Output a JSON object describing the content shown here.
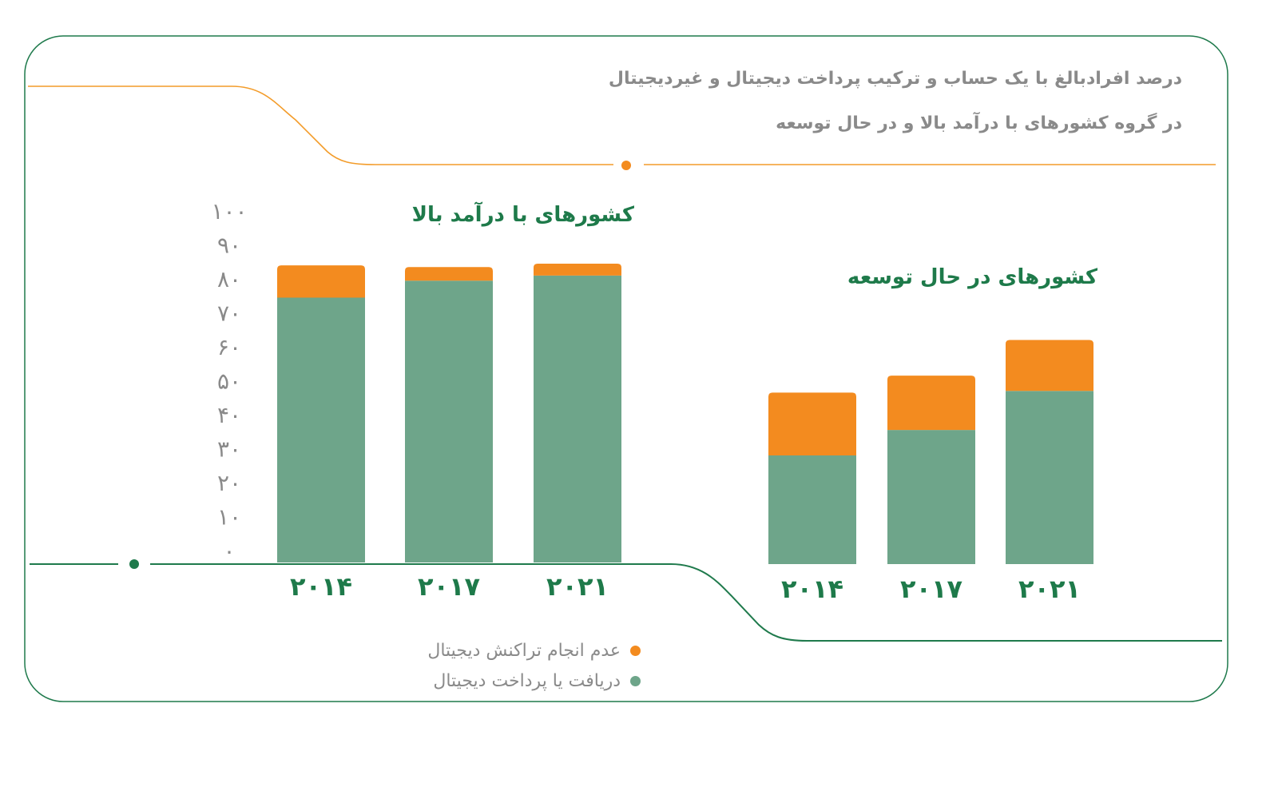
{
  "header": {
    "title_line1": "درصد افرادبالغ با یک حساب و ترکیب پرداخت دیجیتال و غیردیجیتال",
    "title_line2": "در گروه کشورهای با درآمد بالا و در حال توسعه"
  },
  "colors": {
    "digital": "#6ea58a",
    "non_digital": "#f38b1f",
    "title_green": "#1e7a4a",
    "frame_green": "#1f7a4c",
    "accent_orange": "#f39c2a",
    "text_gray": "#8a8a8a"
  },
  "legend": [
    {
      "label": "عدم انجام تراکنش دیجیتال",
      "color": "#f38b1f"
    },
    {
      "label": "دریافت یا پرداخت دیجیتال",
      "color": "#6ea58a"
    }
  ],
  "chart_data": [
    {
      "type": "bar",
      "stacked": true,
      "title": "کشورهای با درآمد بالا",
      "categories": [
        "۲۰۱۴",
        "۲۰۱۷",
        "۲۰۲۱"
      ],
      "series": [
        {
          "name": "دریافت یا پرداخت دیجیتال",
          "values": [
            78,
            83,
            84.5
          ]
        },
        {
          "name": "عدم انجام تراکنش دیجیتال",
          "values": [
            9.5,
            4,
            3.5
          ]
        }
      ],
      "ylim": [
        0,
        100
      ],
      "yticks": [
        "۰",
        "۱۰",
        "۲۰",
        "۳۰",
        "۴۰",
        "۵۰",
        "۶۰",
        "۷۰",
        "۸۰",
        "۹۰",
        "۱۰۰"
      ],
      "legend_position": "bottom"
    },
    {
      "type": "bar",
      "stacked": true,
      "title": "کشورهای در حال توسعه",
      "categories": [
        "۲۰۱۴",
        "۲۰۱۷",
        "۲۰۲۱"
      ],
      "series": [
        {
          "name": "دریافت یا پرداخت دیجیتال",
          "values": [
            32,
            39.5,
            51
          ]
        },
        {
          "name": "عدم انجام تراکنش دیجیتال",
          "values": [
            18.5,
            16,
            15
          ]
        }
      ],
      "ylim": [
        0,
        100
      ]
    }
  ]
}
